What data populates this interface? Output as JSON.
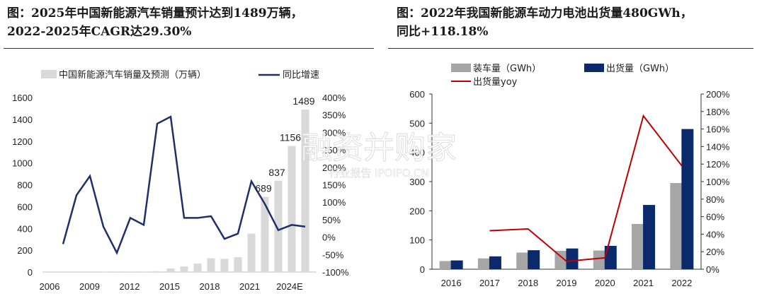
{
  "left": {
    "title_line1": "图：2025年中国新能源汽车销量预计达到1489万辆，",
    "title_line2": "2022-2025年CAGR达29.30%",
    "chart_data": {
      "type": "bar+line",
      "series": [
        {
          "name": "中国新能源汽车销量及预测（万辆）",
          "type": "bar",
          "values": [
            0.2,
            0.5,
            0.8,
            1.8,
            0.8,
            1.3,
            1.8,
            7.5,
            33,
            51,
            78,
            126,
            121,
            137,
            352,
            689,
            837,
            1156,
            1489
          ]
        },
        {
          "name": "同比增速",
          "type": "line",
          "unit": "%",
          "values": [
            -20,
            120,
            175,
            30,
            -45,
            55,
            35,
            325,
            345,
            55,
            55,
            60,
            -5,
            10,
            160,
            95,
            20,
            35,
            30
          ]
        }
      ],
      "x": [
        "2007",
        "2008",
        "2009",
        "2010",
        "2011",
        "2012",
        "2013",
        "2014",
        "2015",
        "2016",
        "2017",
        "2018",
        "2019",
        "2020",
        "2021",
        "2022",
        "2023",
        "2024E",
        "2025E"
      ],
      "x_tick_labels": [
        "2006",
        "2009",
        "2012",
        "2015",
        "2018",
        "2021",
        "2024E"
      ],
      "y_left_ticks": [
        "0",
        "200",
        "400",
        "600",
        "800",
        "1000",
        "1200",
        "1400",
        "1600"
      ],
      "y_right_ticks": [
        "-100%",
        "-50%",
        "0%",
        "50%",
        "100%",
        "150%",
        "200%",
        "250%",
        "300%",
        "350%",
        "400%"
      ],
      "ylim_left": [
        0,
        1600
      ],
      "ylim_right": [
        -100,
        400
      ],
      "data_labels": [
        {
          "index": 15,
          "text": "689"
        },
        {
          "index": 16,
          "text": "837"
        },
        {
          "index": 17,
          "text": "1156"
        },
        {
          "index": 18,
          "text": "1489"
        }
      ],
      "colors": {
        "bar": "#d9d9d9",
        "line": "#1f2f6b"
      }
    }
  },
  "right": {
    "title_line1": "图：2022年我国新能源车动力电池出货量480GWh，",
    "title_line2": "同比+118.18%",
    "chart_data": {
      "type": "bar+line",
      "categories": [
        "2016",
        "2017",
        "2018",
        "2019",
        "2020",
        "2021",
        "2022"
      ],
      "series": [
        {
          "name": "装车量（GWh）",
          "type": "bar",
          "values": [
            28,
            37,
            57,
            63,
            64,
            155,
            295
          ]
        },
        {
          "name": "出货量（GWh）",
          "type": "bar",
          "values": [
            30,
            44,
            65,
            71,
            80,
            220,
            480
          ]
        },
        {
          "name": "出货量yoy",
          "type": "line",
          "unit": "%",
          "values": [
            null,
            44,
            46,
            9,
            13,
            175,
            118
          ]
        }
      ],
      "y_left_ticks": [
        "0",
        "100",
        "200",
        "300",
        "400",
        "500",
        "600"
      ],
      "y_right_ticks": [
        "0%",
        "20%",
        "40%",
        "60%",
        "80%",
        "100%",
        "120%",
        "140%",
        "160%",
        "180%",
        "200%"
      ],
      "ylim_left": [
        0,
        600
      ],
      "ylim_right": [
        0,
        200
      ],
      "colors": {
        "bar1": "#a6a6a6",
        "bar2": "#0b2a6b",
        "line": "#c00000"
      }
    }
  },
  "watermark": {
    "main": "融资并购家",
    "sub": "行业报告 IPOIPO.CN"
  }
}
